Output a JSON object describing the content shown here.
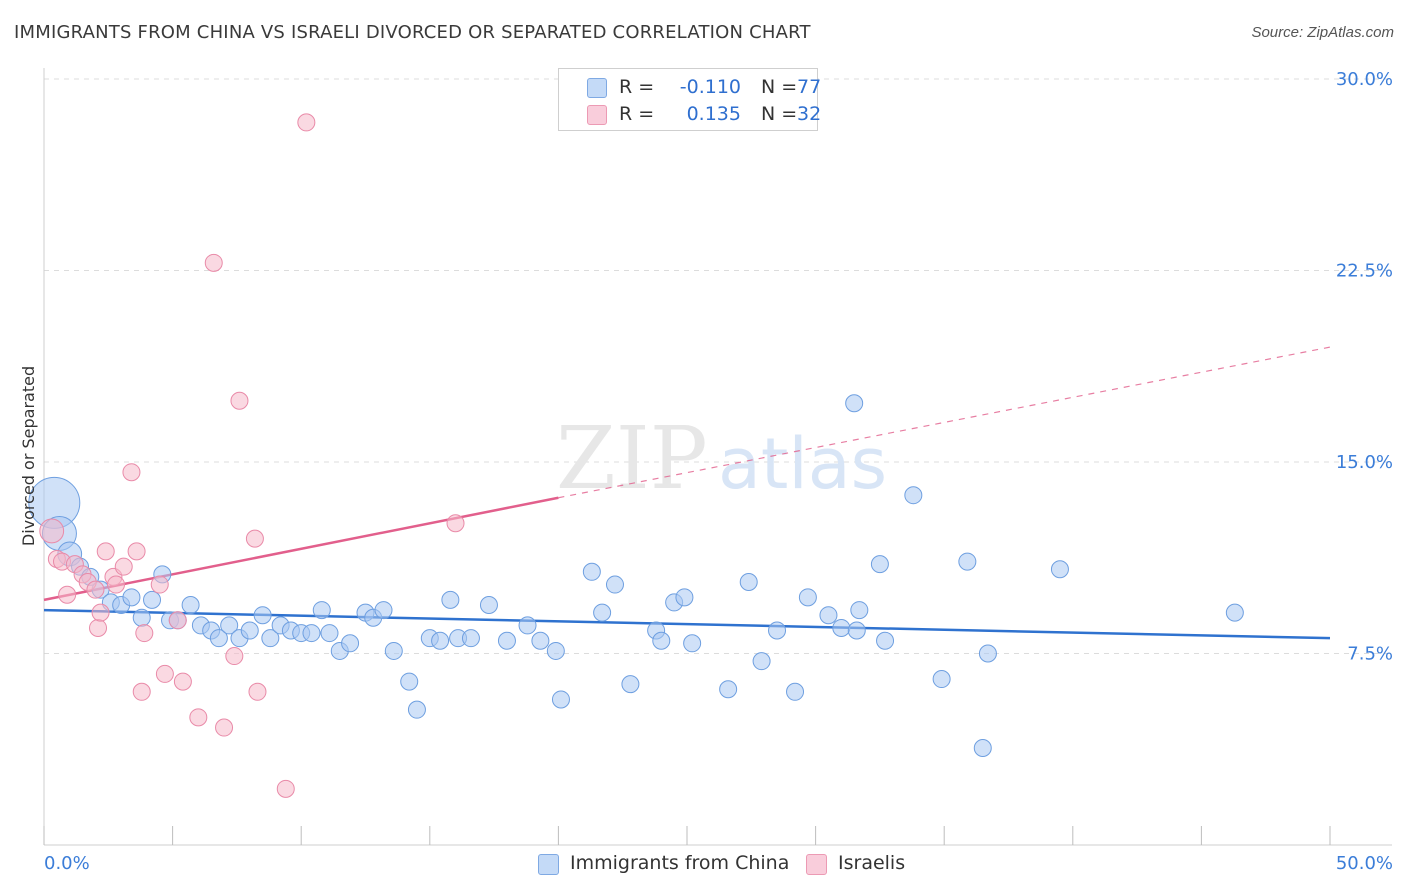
{
  "header": {
    "title": "IMMIGRANTS FROM CHINA VS ISRAELI DIVORCED OR SEPARATED CORRELATION CHART",
    "source": "Source: ZipAtlas.com"
  },
  "watermark": {
    "zip": "ZIP",
    "atlas": "atlas"
  },
  "legend": {
    "rows": [
      {
        "r_label": "R =",
        "r_value": "-0.110",
        "n_label": "N =",
        "n_value": "77",
        "color": "#a9c9f3"
      },
      {
        "r_label": "R =",
        "r_value": "0.135",
        "n_label": "N =",
        "n_value": "32",
        "color": "#f6b9cb"
      }
    ]
  },
  "bottom_legend": [
    {
      "label": "Immigrants from China",
      "color": "#a9c9f3"
    },
    {
      "label": "Israelis",
      "color": "#f6b9cb"
    }
  ],
  "chart_data": {
    "type": "scatter",
    "title": "IMMIGRANTS FROM CHINA VS ISRAELI DIVORCED OR SEPARATED CORRELATION CHART",
    "ylabel": "Divorced or Separated",
    "xlabel": "",
    "xlim": [
      0,
      50
    ],
    "ylim": [
      0,
      30
    ],
    "x_tick_labels": [
      "0.0%",
      "50.0%"
    ],
    "y_ticks": [
      {
        "value": 7.5,
        "label": "7.5%"
      },
      {
        "value": 15.0,
        "label": "15.0%"
      },
      {
        "value": 22.5,
        "label": "22.5%"
      },
      {
        "value": 30.0,
        "label": "30.0%"
      }
    ],
    "grid": "horizontal dashed",
    "series": [
      {
        "name": "Immigrants from China",
        "color": "#a9c9f3",
        "stroke": "#6e9fe0",
        "trend_color": "#2f72cf",
        "trend": {
          "x0": 0,
          "y0": 9.2,
          "x1": 50,
          "y1": 8.1
        },
        "points": [
          [
            0.4,
            13.4,
            3
          ],
          [
            0.6,
            12.2,
            2
          ],
          [
            1.0,
            11.4,
            1.4
          ],
          [
            1.4,
            10.9,
            1
          ],
          [
            1.8,
            10.5,
            1
          ],
          [
            2.2,
            10.0,
            1
          ],
          [
            2.6,
            9.5,
            1
          ],
          [
            3.0,
            9.4,
            1
          ],
          [
            3.4,
            9.7,
            1
          ],
          [
            3.8,
            8.9,
            1
          ],
          [
            4.2,
            9.6,
            1
          ],
          [
            4.6,
            10.6,
            1
          ],
          [
            4.9,
            8.8,
            1
          ],
          [
            5.2,
            8.8,
            1
          ],
          [
            5.7,
            9.4,
            1
          ],
          [
            6.1,
            8.6,
            1
          ],
          [
            6.5,
            8.4,
            1
          ],
          [
            6.8,
            8.1,
            1
          ],
          [
            7.2,
            8.6,
            1
          ],
          [
            7.6,
            8.1,
            1
          ],
          [
            8.0,
            8.4,
            1
          ],
          [
            8.5,
            9.0,
            1
          ],
          [
            8.8,
            8.1,
            1
          ],
          [
            9.2,
            8.6,
            1
          ],
          [
            9.6,
            8.4,
            1
          ],
          [
            10.0,
            8.3,
            1
          ],
          [
            10.4,
            8.3,
            1
          ],
          [
            10.8,
            9.2,
            1
          ],
          [
            11.1,
            8.3,
            1
          ],
          [
            11.5,
            7.6,
            1
          ],
          [
            11.9,
            7.9,
            1
          ],
          [
            12.5,
            9.1,
            1
          ],
          [
            12.8,
            8.9,
            1
          ],
          [
            13.2,
            9.2,
            1
          ],
          [
            13.6,
            7.6,
            1
          ],
          [
            14.2,
            6.4,
            1
          ],
          [
            14.5,
            5.3,
            1
          ],
          [
            15.0,
            8.1,
            1
          ],
          [
            15.4,
            8.0,
            1
          ],
          [
            15.8,
            9.6,
            1
          ],
          [
            16.1,
            8.1,
            1
          ],
          [
            16.6,
            8.1,
            1
          ],
          [
            17.3,
            9.4,
            1
          ],
          [
            18.0,
            8.0,
            1
          ],
          [
            18.8,
            8.6,
            1
          ],
          [
            19.3,
            8.0,
            1
          ],
          [
            19.9,
            7.6,
            1
          ],
          [
            20.1,
            5.7,
            1
          ],
          [
            21.3,
            10.7,
            1
          ],
          [
            21.7,
            9.1,
            1
          ],
          [
            22.2,
            10.2,
            1
          ],
          [
            22.8,
            6.3,
            1
          ],
          [
            23.8,
            8.4,
            1
          ],
          [
            24.0,
            8.0,
            1
          ],
          [
            24.5,
            9.5,
            1
          ],
          [
            24.9,
            9.7,
            1
          ],
          [
            25.2,
            7.9,
            1
          ],
          [
            26.6,
            6.1,
            1
          ],
          [
            27.4,
            10.3,
            1
          ],
          [
            27.9,
            7.2,
            1
          ],
          [
            28.5,
            8.4,
            1
          ],
          [
            29.2,
            6.0,
            1
          ],
          [
            29.7,
            9.7,
            1
          ],
          [
            30.5,
            9.0,
            1
          ],
          [
            31.0,
            8.5,
            1
          ],
          [
            31.6,
            8.4,
            1
          ],
          [
            31.7,
            9.2,
            1
          ],
          [
            31.5,
            17.3,
            1
          ],
          [
            32.5,
            11.0,
            1
          ],
          [
            32.7,
            8.0,
            1
          ],
          [
            33.8,
            13.7,
            1
          ],
          [
            34.9,
            6.5,
            1
          ],
          [
            35.9,
            11.1,
            1
          ],
          [
            36.5,
            3.8,
            1
          ],
          [
            36.7,
            7.5,
            1
          ],
          [
            39.5,
            10.8,
            1
          ],
          [
            46.3,
            9.1,
            1
          ]
        ]
      },
      {
        "name": "Israelis",
        "color": "#f6b9cb",
        "stroke": "#e98aa8",
        "trend_color": "#e25f8c",
        "trend": {
          "x0": 0,
          "y0": 9.6,
          "x1": 20,
          "y1": 13.6
        },
        "trend_dashed": {
          "x0": 20,
          "y0": 13.6,
          "x1": 50,
          "y1": 19.5
        },
        "points": [
          [
            0.3,
            12.3,
            1.4
          ],
          [
            0.5,
            11.2,
            1
          ],
          [
            0.7,
            11.1,
            1
          ],
          [
            0.9,
            9.8,
            1
          ],
          [
            1.2,
            11.0,
            1
          ],
          [
            1.5,
            10.6,
            1
          ],
          [
            1.7,
            10.3,
            1
          ],
          [
            2.0,
            10.0,
            1
          ],
          [
            2.1,
            8.5,
            1
          ],
          [
            2.2,
            9.1,
            1
          ],
          [
            2.4,
            11.5,
            1
          ],
          [
            2.7,
            10.5,
            1
          ],
          [
            2.8,
            10.2,
            1
          ],
          [
            3.1,
            10.9,
            1
          ],
          [
            3.4,
            14.6,
            1
          ],
          [
            3.6,
            11.5,
            1
          ],
          [
            3.8,
            6.0,
            1
          ],
          [
            3.9,
            8.3,
            1
          ],
          [
            4.5,
            10.2,
            1
          ],
          [
            4.7,
            6.7,
            1
          ],
          [
            5.2,
            8.8,
            1
          ],
          [
            5.4,
            6.4,
            1
          ],
          [
            6.0,
            5.0,
            1
          ],
          [
            6.6,
            22.8,
            1
          ],
          [
            7.0,
            4.6,
            1
          ],
          [
            7.4,
            7.4,
            1
          ],
          [
            7.6,
            17.4,
            1
          ],
          [
            8.2,
            12.0,
            1
          ],
          [
            8.3,
            6.0,
            1
          ],
          [
            9.4,
            2.2,
            1
          ],
          [
            10.2,
            28.3,
            1
          ],
          [
            16.0,
            12.6,
            1
          ]
        ]
      }
    ]
  }
}
